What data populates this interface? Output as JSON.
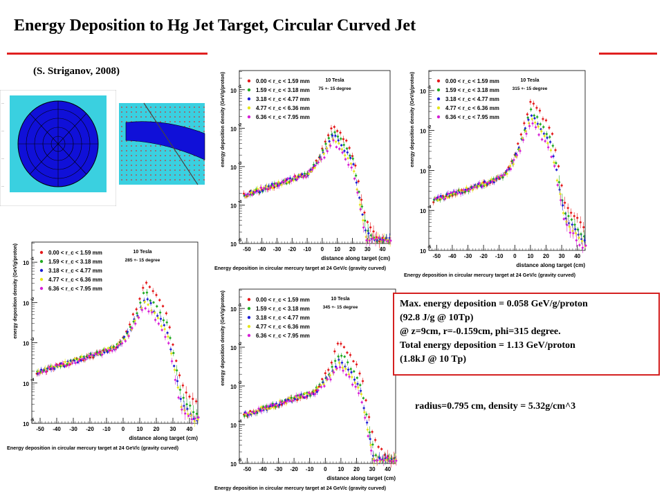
{
  "title": "Energy Deposition to Hg Jet Target, Circular Curved Jet",
  "author": "(S. Striganov, 2008)",
  "colors": {
    "accent_line": "#e02020",
    "box_border": "#d42020",
    "series": [
      "#e41a1c",
      "#22aa22",
      "#1f1fd6",
      "#e6e61a",
      "#d61fd6"
    ],
    "geometry_bg": "#3ad0e0",
    "geometry_fill": "#1010d8"
  },
  "info": {
    "lines": [
      "Max. energy deposition = 0.058 GeV/g/proton",
      "(92.8 J/g @ 10Tp)",
      "@  z=9cm, r=-0.159cm, phi=315 degree.",
      "Total energy deposition = 1.13 GeV/proton",
      "(1.8kJ @ 10 Tp)"
    ]
  },
  "radius_text": "radius=0.795 cm, density = 5.32g/cm^3",
  "chart_data": [
    {
      "type": "scatter",
      "panel": "75",
      "field": "10 Tesla",
      "angle_label": "75 +- 15 degree",
      "xlabel": "distance along target (cm)",
      "ylabel": "energy deposition density (GeV/g/proton)",
      "caption": "Energy deposition in circular mercury target at 24 GeV/c (gravity curved)",
      "xlim": [
        -55,
        45
      ],
      "ylim_log10": [
        -5,
        -0.5
      ],
      "x_ticks": [
        -50,
        -40,
        -30,
        -20,
        -10,
        0,
        10,
        20,
        30,
        40
      ],
      "y_ticks": [
        "10^-1",
        "10^-2",
        "10^-3",
        "10^-4",
        "10^-5"
      ],
      "legend": [
        "0.00 < r_c < 1.59 mm",
        "1.59 < r_c < 3.18 mm",
        "3.18 < r_c < 4.77 mm",
        "4.77 < r_c < 6.36 mm",
        "6.36 < r_c < 7.95 mm"
      ],
      "peak": {
        "x": 7,
        "log10_values": [
          -1.9,
          -2.05,
          -2.15,
          -2.25,
          -2.35
        ]
      }
    },
    {
      "type": "scatter",
      "panel": "315",
      "field": "10 Tesla",
      "angle_label": "315 +- 15 degree",
      "xlabel": "distance along target (cm)",
      "ylabel": "energy deposition density (GeV/g/proton)",
      "caption": "Energy deposition in circular mercury target at 24 GeV/c (gravity curved)",
      "xlim": [
        -55,
        45
      ],
      "ylim_log10": [
        -5,
        -0.5
      ],
      "x_ticks": [
        -50,
        -40,
        -30,
        -20,
        -10,
        0,
        10,
        20,
        30,
        40
      ],
      "y_ticks": [
        "10^-1",
        "10^-2",
        "10^-3",
        "10^-4",
        "10^-5"
      ],
      "legend": [
        "0.00 < r_c < 1.59 mm",
        "1.59 < r_c < 3.18 mm",
        "3.18 < r_c < 4.77 mm",
        "4.77 < r_c < 6.36 mm",
        "6.36 < r_c < 7.95 mm"
      ],
      "peak": {
        "x": 10,
        "log10_values": [
          -1.25,
          -1.5,
          -1.6,
          -1.7,
          -1.8
        ]
      }
    },
    {
      "type": "scatter",
      "panel": "285",
      "field": "10 Tesla",
      "angle_label": "285 +- 15 degree",
      "xlabel": "distance along target (cm)",
      "ylabel": "energy deposition density (GeV/g/proton)",
      "caption": "Energy deposition in circular mercury target at 24 GeV/c (gravity curved)",
      "xlim": [
        -55,
        45
      ],
      "ylim_log10": [
        -5,
        -0.5
      ],
      "x_ticks": [
        -50,
        -40,
        -30,
        -20,
        -10,
        0,
        10,
        20,
        30,
        40
      ],
      "y_ticks": [
        "10^-1",
        "10^-2",
        "10^-3",
        "10^-4",
        "10^-5"
      ],
      "legend": [
        "0.00 < r_c < 1.59 mm",
        "1.59 < r_c < 3.18 mm",
        "3.18 < r_c < 4.77 mm",
        "4.77 < r_c < 6.36 mm",
        "6.36 < r_c < 7.95 mm"
      ],
      "peak": {
        "x": 13,
        "log10_values": [
          -1.5,
          -1.75,
          -1.9,
          -2.0,
          -2.1
        ]
      }
    },
    {
      "type": "scatter",
      "panel": "345",
      "field": "10 Tesla",
      "angle_label": "345 +- 15 degree",
      "xlabel": "distance along target (cm)",
      "ylabel": "energy deposition density (GeV/g/proton)",
      "caption": "Energy deposition in circular mercury target at 24 GeV/c (gravity curved)",
      "xlim": [
        -55,
        45
      ],
      "ylim_log10": [
        -5,
        -0.5
      ],
      "x_ticks": [
        -50,
        -40,
        -30,
        -20,
        -10,
        0,
        10,
        20,
        30,
        40
      ],
      "y_ticks": [
        "10^-1",
        "10^-2",
        "10^-3",
        "10^-4",
        "10^-5"
      ],
      "legend": [
        "0.00 < r_c < 1.59 mm",
        "1.59 < r_c < 3.18 mm",
        "3.18 < r_c < 4.77 mm",
        "4.77 < r_c < 6.36 mm",
        "6.36 < r_c < 7.95 mm"
      ],
      "peak": {
        "x": 9,
        "log10_values": [
          -1.85,
          -2.15,
          -2.3,
          -2.4,
          -2.5
        ]
      }
    }
  ]
}
